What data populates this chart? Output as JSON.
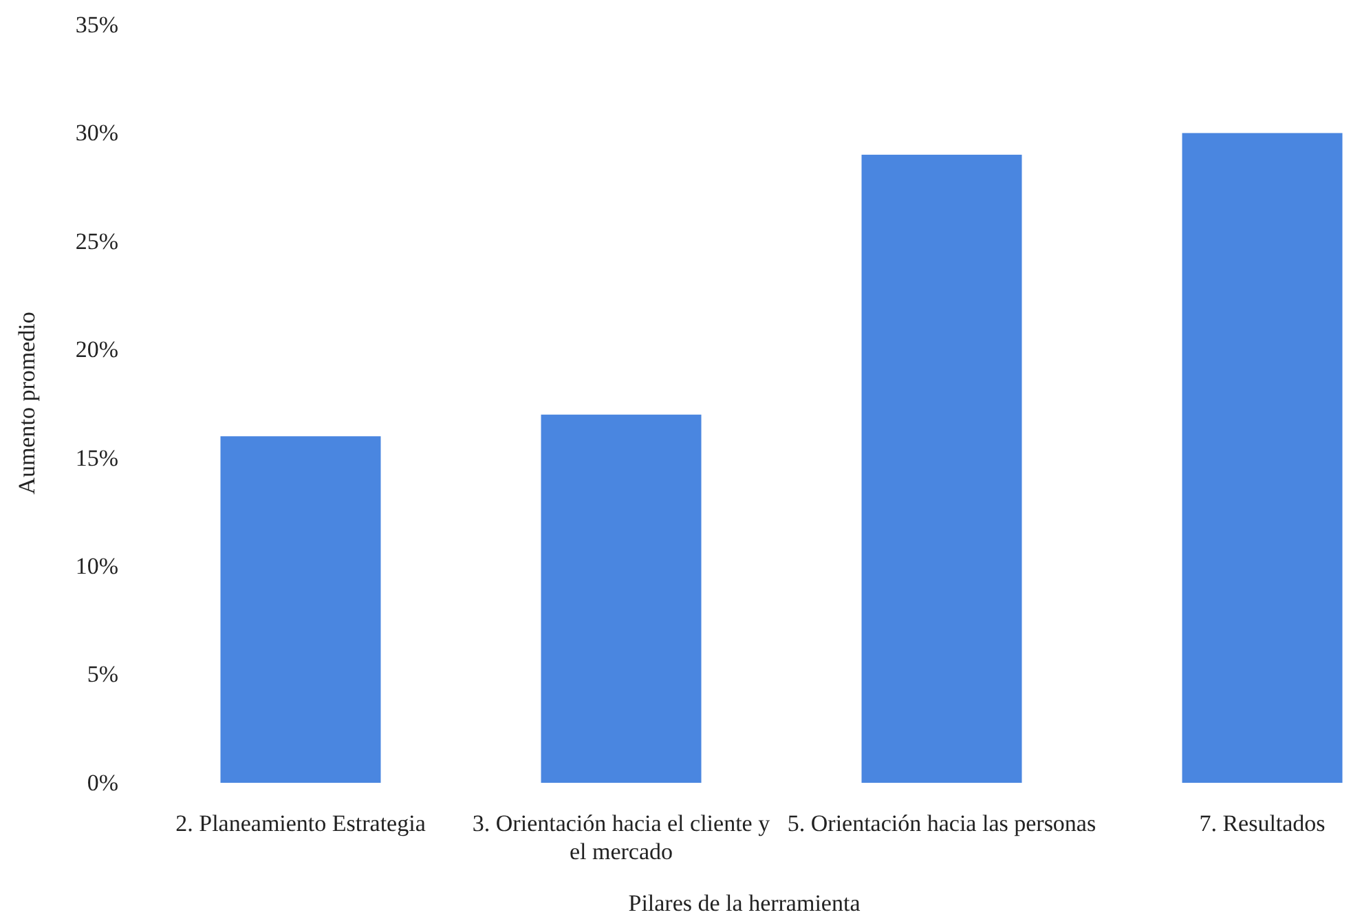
{
  "chart_data": {
    "type": "bar",
    "xlabel": "Pilares de la herramienta",
    "ylabel": "Aumento promedio",
    "categories": [
      "2. Planeamiento Estrategia",
      "3. Orientación hacia el cliente y el mercado",
      "5. Orientación hacia las personas",
      "7. Resultados"
    ],
    "values": [
      16,
      17,
      29,
      30
    ],
    "color": "#4a86e0",
    "ylim": [
      0,
      35
    ],
    "yticks": [
      {
        "value": 0,
        "label": "0%"
      },
      {
        "value": 5,
        "label": "5%"
      },
      {
        "value": 10,
        "label": "10%"
      },
      {
        "value": 15,
        "label": "15%"
      },
      {
        "value": 20,
        "label": "20%"
      },
      {
        "value": 25,
        "label": "25%"
      },
      {
        "value": 30,
        "label": "30%"
      },
      {
        "value": 35,
        "label": "35%"
      }
    ],
    "grid": false
  }
}
